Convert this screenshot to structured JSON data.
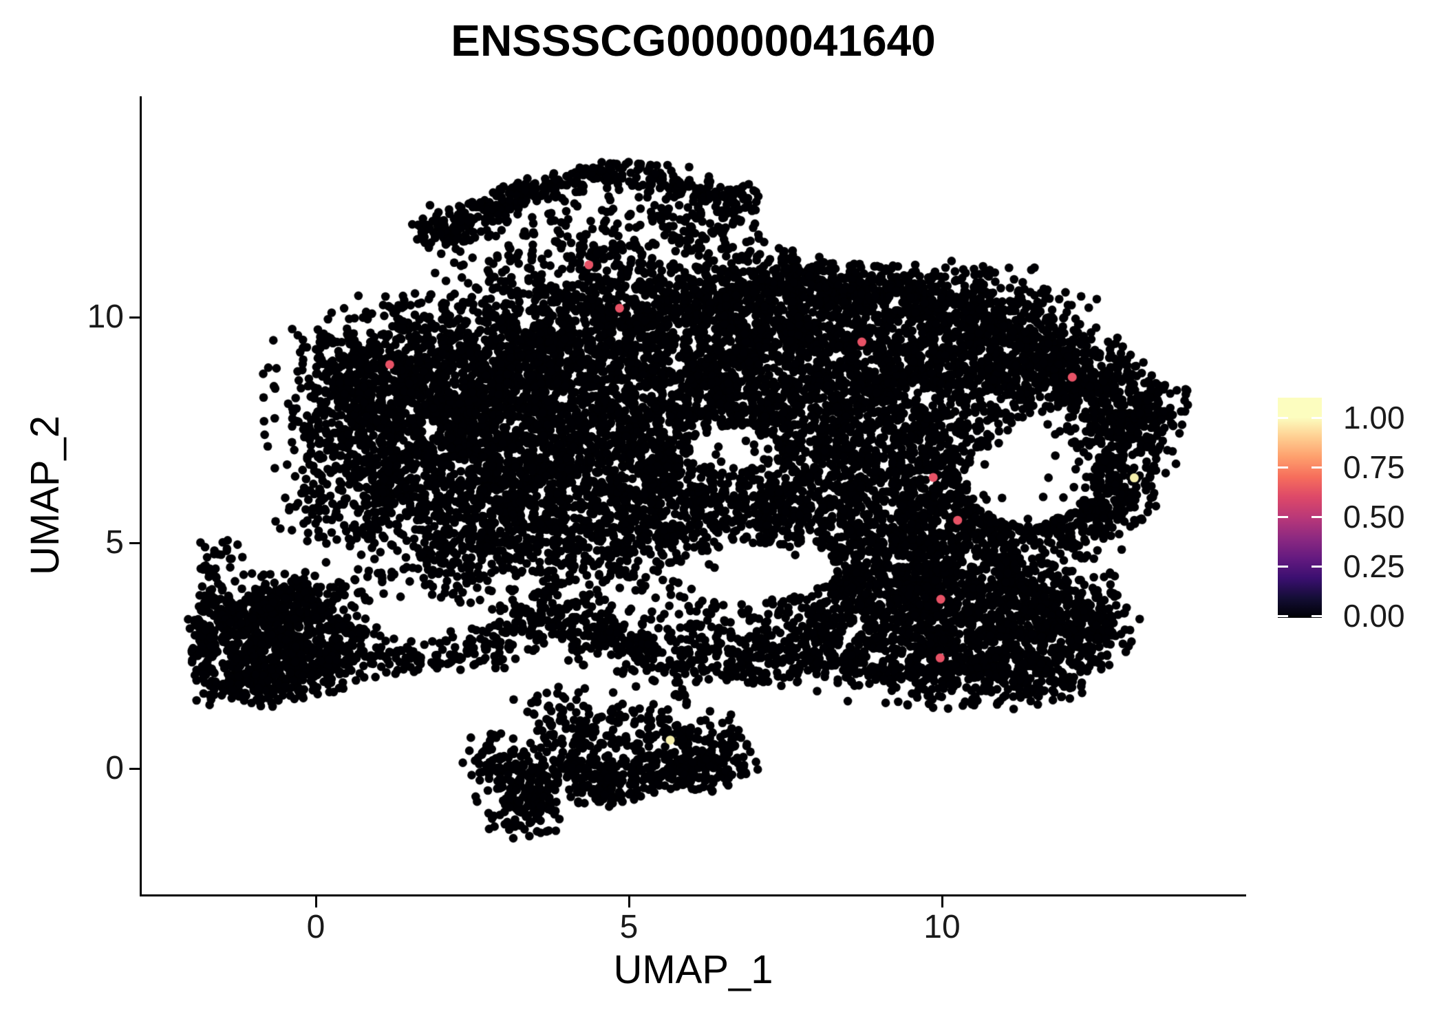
{
  "title": "ENSSSCG00000041640",
  "axes": {
    "x_label": "UMAP_1",
    "y_label": "UMAP_2",
    "x_ticks": [
      {
        "label": "0",
        "value": 0
      },
      {
        "label": "5",
        "value": 5
      },
      {
        "label": "10",
        "value": 10
      }
    ],
    "y_ticks": [
      {
        "label": "0",
        "value": 0
      },
      {
        "label": "5",
        "value": 5
      },
      {
        "label": "10",
        "value": 10
      }
    ]
  },
  "legend": {
    "ticks": [
      {
        "label": "1.00",
        "value": 1.0
      },
      {
        "label": "0.75",
        "value": 0.75
      },
      {
        "label": "0.50",
        "value": 0.5
      },
      {
        "label": "0.25",
        "value": 0.25
      },
      {
        "label": "0.00",
        "value": 0.0
      }
    ],
    "gradient_stops": [
      {
        "p": 0,
        "c": "#000004"
      },
      {
        "p": 9,
        "c": "#140e36"
      },
      {
        "p": 18,
        "c": "#3b0f70"
      },
      {
        "p": 27,
        "c": "#641a80"
      },
      {
        "p": 36,
        "c": "#8c2981"
      },
      {
        "p": 45,
        "c": "#b73779"
      },
      {
        "p": 55,
        "c": "#de4968"
      },
      {
        "p": 64,
        "c": "#f66e5c"
      },
      {
        "p": 73,
        "c": "#fe9f6d"
      },
      {
        "p": 82,
        "c": "#fece91"
      },
      {
        "p": 91,
        "c": "#fcfdbf"
      },
      {
        "p": 100,
        "c": "#fcfdbf"
      }
    ]
  },
  "chart_data": {
    "type": "scatter",
    "title": "ENSSSCG00000041640",
    "xlabel": "UMAP_1",
    "ylabel": "UMAP_2",
    "x_range": [
      -2.8,
      14.8
    ],
    "y_range": [
      -2.8,
      14.9
    ],
    "x_tick_values": [
      0,
      5,
      10
    ],
    "y_tick_values": [
      0,
      5,
      10
    ],
    "grid": false,
    "legend_position": "right",
    "color_scale": {
      "min": 0.0,
      "max": 1.0,
      "palette": "magma"
    },
    "point_color": "#000004",
    "point_radius_px": 6.3,
    "density": 0.62,
    "clusters": [
      [
        2.0,
        11.95,
        0.28,
        0.16,
        65
      ],
      [
        2.55,
        12.3,
        0.28,
        0.16,
        65
      ],
      [
        3.15,
        12.6,
        0.28,
        0.16,
        65
      ],
      [
        3.75,
        12.9,
        0.28,
        0.16,
        65
      ],
      [
        4.35,
        13.1,
        0.28,
        0.16,
        65
      ],
      [
        4.95,
        13.18,
        0.28,
        0.16,
        65
      ],
      [
        5.55,
        13.05,
        0.28,
        0.16,
        65
      ],
      [
        6.1,
        12.85,
        0.28,
        0.16,
        65
      ],
      [
        6.55,
        12.6,
        0.28,
        0.16,
        65
      ],
      [
        2.1,
        11.9,
        0.25,
        0.3,
        80
      ],
      [
        3.4,
        11.5,
        0.8,
        0.6,
        130
      ],
      [
        4.8,
        11.7,
        0.9,
        0.65,
        170
      ],
      [
        5.9,
        12.2,
        0.6,
        0.45,
        120
      ],
      [
        4.2,
        10.8,
        1.0,
        0.45,
        110
      ],
      [
        5.5,
        10.9,
        0.8,
        0.45,
        100
      ],
      [
        6.9,
        11.9,
        0.45,
        0.5,
        40
      ],
      [
        7.7,
        11.4,
        0.8,
        0.5,
        28
      ],
      [
        0.6,
        8.85,
        0.5,
        0.6,
        200
      ],
      [
        1.5,
        9.05,
        0.7,
        0.75,
        380
      ],
      [
        2.7,
        9.45,
        0.8,
        0.7,
        430
      ],
      [
        3.9,
        9.65,
        0.8,
        0.65,
        380
      ],
      [
        5.0,
        9.95,
        0.8,
        0.6,
        330
      ],
      [
        6.1,
        10.15,
        0.7,
        0.55,
        280
      ],
      [
        7.0,
        10.4,
        0.6,
        0.5,
        260
      ],
      [
        7.9,
        10.75,
        0.65,
        0.45,
        300
      ],
      [
        8.8,
        10.55,
        0.65,
        0.45,
        300
      ],
      [
        9.7,
        10.3,
        0.65,
        0.5,
        280
      ],
      [
        10.6,
        10.15,
        0.6,
        0.5,
        260
      ],
      [
        11.4,
        9.7,
        0.55,
        0.5,
        240
      ],
      [
        12.15,
        9.0,
        0.5,
        0.5,
        220
      ],
      [
        0.35,
        7.75,
        0.6,
        1.0,
        330
      ],
      [
        1.2,
        7.85,
        0.7,
        0.7,
        330
      ],
      [
        2.3,
        8.05,
        0.8,
        0.7,
        380
      ],
      [
        3.5,
        8.25,
        0.8,
        0.7,
        380
      ],
      [
        4.7,
        8.55,
        0.8,
        0.7,
        350
      ],
      [
        5.8,
        8.95,
        0.7,
        0.6,
        280
      ],
      [
        6.8,
        9.2,
        0.6,
        0.55,
        260
      ],
      [
        7.7,
        9.35,
        0.6,
        0.55,
        300
      ],
      [
        8.7,
        9.05,
        0.7,
        0.6,
        330
      ],
      [
        9.7,
        8.85,
        0.7,
        0.6,
        330
      ],
      [
        10.7,
        8.85,
        0.6,
        0.55,
        280
      ],
      [
        11.6,
        8.6,
        0.5,
        0.5,
        220
      ],
      [
        12.5,
        8.35,
        0.45,
        0.5,
        200
      ],
      [
        13.0,
        7.8,
        0.35,
        0.5,
        150
      ],
      [
        1.0,
        6.6,
        0.7,
        0.7,
        280
      ],
      [
        2.2,
        6.85,
        0.75,
        0.7,
        330
      ],
      [
        3.4,
        7.05,
        0.75,
        0.65,
        330
      ],
      [
        4.5,
        7.25,
        0.7,
        0.6,
        280
      ],
      [
        5.5,
        7.55,
        0.65,
        0.6,
        250
      ],
      [
        6.6,
        7.9,
        0.6,
        0.55,
        230
      ],
      [
        7.4,
        7.95,
        0.6,
        0.55,
        260
      ],
      [
        8.3,
        7.75,
        0.7,
        0.65,
        330
      ],
      [
        9.4,
        7.6,
        0.65,
        0.6,
        300
      ],
      [
        10.3,
        7.35,
        0.5,
        0.5,
        170
      ],
      [
        12.45,
        6.7,
        0.45,
        0.6,
        200
      ],
      [
        13.05,
        7.25,
        0.35,
        0.5,
        130
      ],
      [
        13.45,
        7.9,
        0.3,
        0.45,
        90
      ],
      [
        1.9,
        5.85,
        0.7,
        0.6,
        230
      ],
      [
        3.0,
        5.95,
        0.7,
        0.6,
        260
      ],
      [
        4.2,
        6.05,
        0.7,
        0.6,
        260
      ],
      [
        5.3,
        6.3,
        0.6,
        0.55,
        220
      ],
      [
        6.3,
        6.35,
        0.6,
        0.55,
        200
      ],
      [
        7.4,
        6.6,
        0.6,
        0.55,
        240
      ],
      [
        8.5,
        6.45,
        0.65,
        0.6,
        280
      ],
      [
        9.6,
        6.3,
        0.6,
        0.55,
        260
      ],
      [
        10.5,
        6.05,
        0.45,
        0.5,
        150
      ],
      [
        12.7,
        5.95,
        0.4,
        0.45,
        160
      ],
      [
        2.75,
        4.95,
        0.6,
        0.5,
        180
      ],
      [
        3.85,
        5.05,
        0.65,
        0.5,
        200
      ],
      [
        4.9,
        5.25,
        0.6,
        0.5,
        190
      ],
      [
        6.0,
        5.35,
        0.6,
        0.5,
        170
      ],
      [
        7.1,
        5.55,
        0.6,
        0.5,
        190
      ],
      [
        8.2,
        5.35,
        0.6,
        0.55,
        240
      ],
      [
        9.3,
        5.15,
        0.6,
        0.55,
        260
      ],
      [
        10.3,
        5.2,
        0.55,
        0.55,
        260
      ],
      [
        11.2,
        5.4,
        0.5,
        0.55,
        240
      ],
      [
        12.05,
        5.55,
        0.45,
        0.5,
        200
      ],
      [
        9.0,
        4.35,
        0.7,
        0.55,
        300
      ],
      [
        10.0,
        4.15,
        0.6,
        0.5,
        280
      ],
      [
        10.9,
        4.0,
        0.6,
        0.5,
        280
      ],
      [
        11.8,
        3.8,
        0.5,
        0.45,
        240
      ],
      [
        12.35,
        3.1,
        0.45,
        0.4,
        180
      ],
      [
        9.4,
        3.3,
        0.6,
        0.45,
        240
      ],
      [
        10.4,
        3.1,
        0.6,
        0.45,
        260
      ],
      [
        11.3,
        2.9,
        0.5,
        0.4,
        220
      ],
      [
        8.5,
        2.6,
        0.6,
        0.45,
        220
      ],
      [
        9.5,
        2.2,
        0.6,
        0.4,
        220
      ],
      [
        10.5,
        2.1,
        0.55,
        0.4,
        200
      ],
      [
        11.4,
        2.0,
        0.45,
        0.35,
        150
      ],
      [
        12.0,
        2.45,
        0.4,
        0.35,
        130
      ],
      [
        7.6,
        2.6,
        0.55,
        0.4,
        170
      ],
      [
        6.8,
        2.45,
        0.55,
        0.35,
        150
      ],
      [
        5.9,
        2.55,
        0.55,
        0.35,
        140
      ],
      [
        5.0,
        2.8,
        0.55,
        0.35,
        140
      ],
      [
        4.2,
        3.1,
        0.5,
        0.35,
        130
      ],
      [
        3.5,
        3.6,
        0.45,
        0.35,
        110
      ],
      [
        6.5,
        3.35,
        0.7,
        0.35,
        90
      ],
      [
        8.0,
        3.65,
        0.6,
        0.4,
        120
      ],
      [
        0.3,
        5.6,
        0.5,
        0.5,
        90
      ],
      [
        1.3,
        4.8,
        0.6,
        0.5,
        90
      ],
      [
        2.2,
        4.35,
        0.5,
        0.4,
        80
      ],
      [
        4.7,
        4.25,
        0.7,
        0.4,
        90
      ],
      [
        6.1,
        4.45,
        1.0,
        0.45,
        70
      ],
      [
        6.7,
        6.9,
        6.2,
        4.3,
        420,
        "u"
      ],
      [
        -1.35,
        3.3,
        0.35,
        0.45,
        160
      ],
      [
        -0.75,
        3.55,
        0.45,
        0.4,
        200
      ],
      [
        -0.1,
        3.3,
        0.45,
        0.4,
        190
      ],
      [
        -1.2,
        2.55,
        0.4,
        0.4,
        180
      ],
      [
        -0.5,
        2.6,
        0.45,
        0.4,
        200
      ],
      [
        -1.3,
        1.9,
        0.35,
        0.3,
        130
      ],
      [
        -0.6,
        1.95,
        0.4,
        0.3,
        150
      ],
      [
        0.1,
        2.2,
        0.35,
        0.35,
        130
      ],
      [
        0.5,
        2.7,
        0.3,
        0.35,
        110
      ],
      [
        -0.2,
        3.9,
        0.4,
        0.25,
        90
      ],
      [
        -1.7,
        4.35,
        0.13,
        0.4,
        40
      ],
      [
        -1.45,
        4.8,
        0.18,
        0.18,
        22
      ],
      [
        -1.75,
        3.0,
        0.15,
        0.4,
        60
      ],
      [
        1.2,
        2.5,
        0.4,
        0.2,
        55
      ],
      [
        1.9,
        2.5,
        0.4,
        0.2,
        50
      ],
      [
        2.6,
        2.65,
        0.35,
        0.25,
        60
      ],
      [
        3.0,
        3.05,
        0.3,
        0.25,
        50
      ],
      [
        0.6,
        4.3,
        0.5,
        0.4,
        30
      ],
      [
        3.35,
        -0.75,
        0.3,
        0.42,
        200
      ],
      [
        3.2,
        -0.15,
        0.35,
        0.3,
        120
      ],
      [
        2.75,
        0.35,
        0.22,
        0.3,
        55
      ],
      [
        4.3,
        0.35,
        0.45,
        0.5,
        230
      ],
      [
        4.6,
        -0.35,
        0.3,
        0.3,
        120
      ],
      [
        5.3,
        -0.05,
        0.45,
        0.25,
        150
      ],
      [
        6.05,
        -0.1,
        0.4,
        0.25,
        140
      ],
      [
        6.5,
        0.35,
        0.3,
        0.3,
        100
      ],
      [
        5.7,
        0.7,
        0.5,
        0.3,
        110
      ],
      [
        4.9,
        1.05,
        0.7,
        0.3,
        60
      ],
      [
        3.9,
        1.3,
        0.5,
        0.3,
        40
      ],
      [
        5.5,
        1.55,
        0.9,
        0.25,
        25
      ]
    ],
    "holes": [
      [
        11.35,
        6.45,
        0.95,
        1.05,
        0.06
      ],
      [
        7.0,
        4.35,
        1.25,
        0.6,
        0.1
      ],
      [
        6.7,
        7.1,
        0.6,
        0.5,
        0.15
      ],
      [
        9.3,
        12.1,
        2.2,
        0.9,
        0.0
      ]
    ],
    "highlight_points": [
      {
        "x": 4.36,
        "y": 11.16,
        "color": "#e75266"
      },
      {
        "x": 4.85,
        "y": 10.2,
        "color": "#e75266"
      },
      {
        "x": 1.18,
        "y": 8.95,
        "color": "#e75266"
      },
      {
        "x": 8.72,
        "y": 9.45,
        "color": "#e75266"
      },
      {
        "x": 12.08,
        "y": 8.67,
        "color": "#e75266"
      },
      {
        "x": 9.86,
        "y": 6.45,
        "color": "#e75266"
      },
      {
        "x": 10.25,
        "y": 5.5,
        "color": "#e75266"
      },
      {
        "x": 9.98,
        "y": 3.75,
        "color": "#e75266"
      },
      {
        "x": 9.97,
        "y": 2.45,
        "color": "#e75266"
      },
      {
        "x": 13.07,
        "y": 6.44,
        "color": "#f5efac"
      },
      {
        "x": 5.66,
        "y": 0.63,
        "color": "#f5efac"
      }
    ]
  }
}
